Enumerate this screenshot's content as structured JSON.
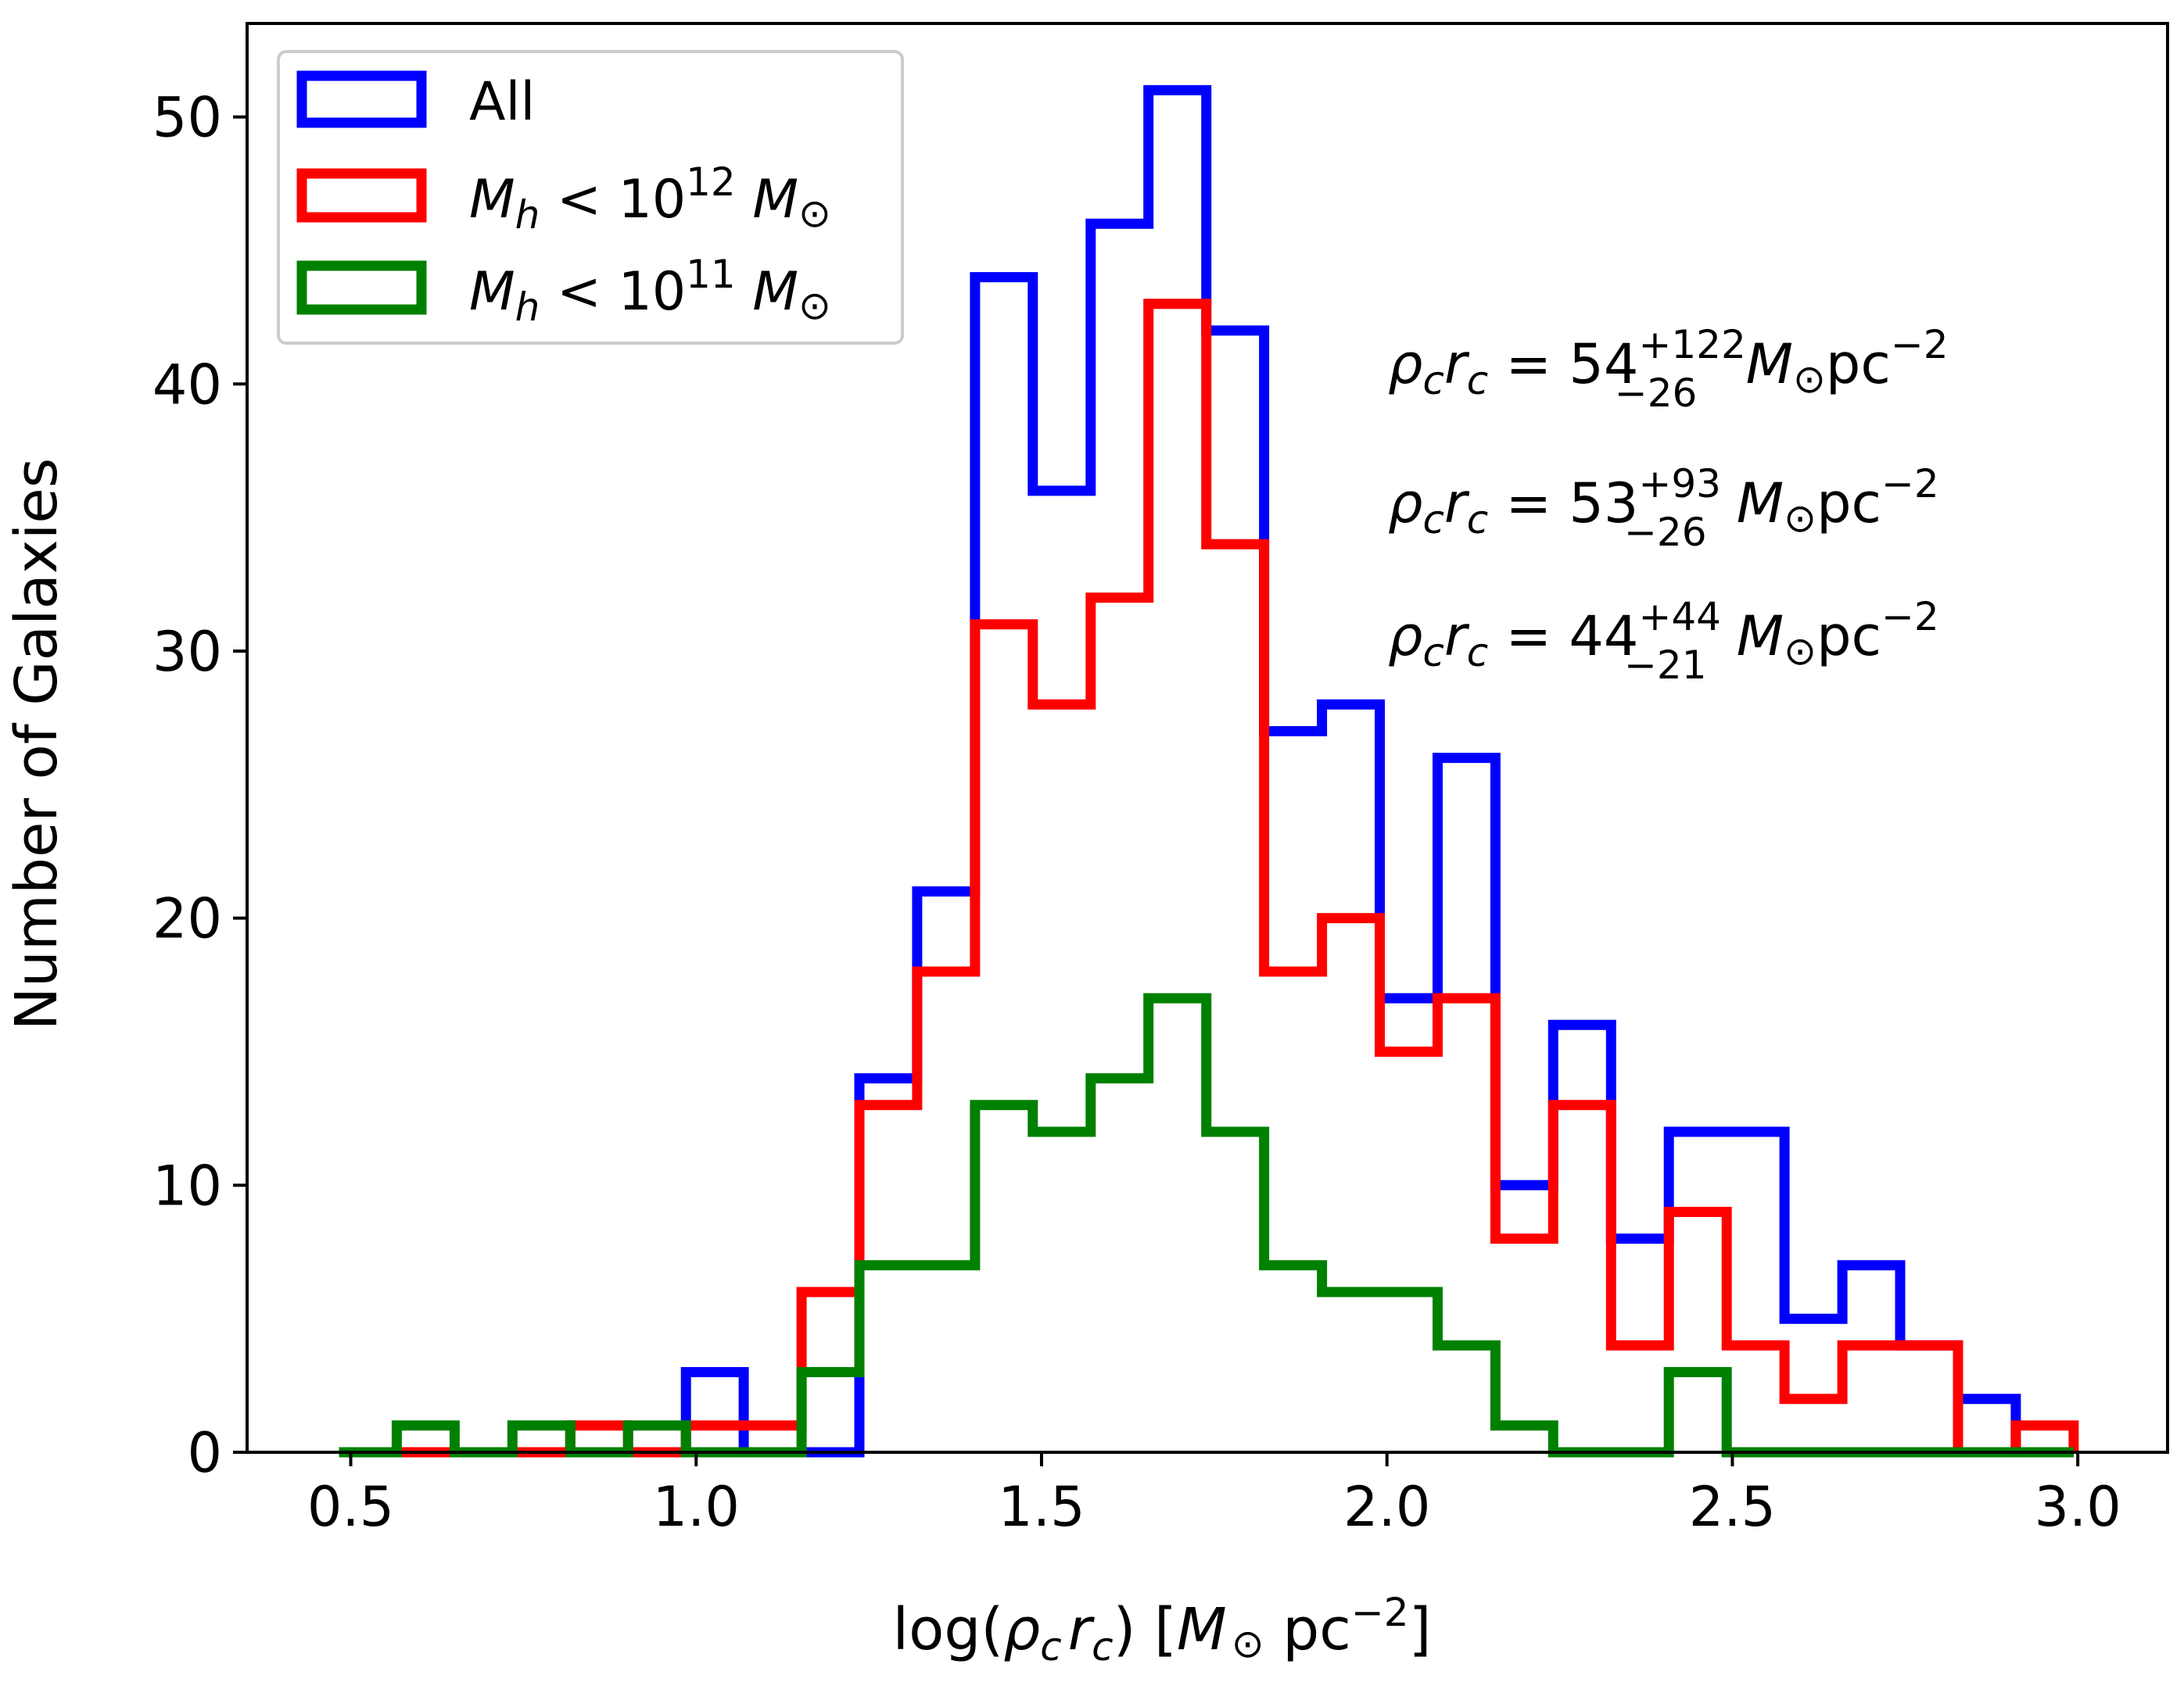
{
  "chart_data": {
    "type": "histogram",
    "title": "",
    "xlabel": {
      "pre": "log(",
      "rho": "ρ",
      "rho_sub": "c",
      "r": "r",
      "r_sub": "c",
      "post": ") [",
      "M": "M",
      "sun": "⊙",
      "unit": " pc",
      "exp": "−2",
      "close": "]"
    },
    "ylabel": "Number of Galaxies",
    "xlim": [
      0.35,
      3.13
    ],
    "ylim": [
      0,
      53.5
    ],
    "xticks": [
      "0.5",
      "1.0",
      "1.5",
      "2.0",
      "2.5",
      "3.0"
    ],
    "xtick_values": [
      0.5,
      1.0,
      1.5,
      2.0,
      2.5,
      3.0
    ],
    "yticks": [
      "0",
      "10",
      "20",
      "30",
      "40",
      "50"
    ],
    "ytick_values": [
      0,
      10,
      20,
      30,
      40,
      50
    ],
    "bin_start": 0.483,
    "bin_width": 0.0837,
    "series": [
      {
        "name": "All",
        "color": "#0000ff",
        "values": [
          0,
          0,
          0,
          0,
          0,
          0,
          3,
          0,
          0,
          14,
          21,
          44,
          36,
          46,
          51,
          42,
          27,
          28,
          17,
          26,
          10,
          16,
          8,
          12,
          12,
          5,
          7,
          4,
          2,
          0
        ]
      },
      {
        "name": "Mh < 10^12 Msun",
        "color": "#ff0000",
        "values": [
          0,
          0,
          0,
          0,
          1,
          0,
          1,
          1,
          6,
          13,
          18,
          31,
          28,
          32,
          43,
          34,
          18,
          20,
          15,
          17,
          8,
          13,
          4,
          9,
          4,
          2,
          4,
          4,
          0,
          1
        ]
      },
      {
        "name": "Mh < 10^11 Msun",
        "color": "#008000",
        "values": [
          0,
          1,
          0,
          1,
          0,
          1,
          0,
          0,
          3,
          7,
          7,
          13,
          12,
          14,
          17,
          12,
          7,
          6,
          6,
          4,
          1,
          0,
          0,
          3,
          0,
          0,
          0,
          0,
          0,
          0
        ]
      }
    ],
    "legend": {
      "position": "top-left",
      "entries": [
        {
          "label": "All"
        },
        {
          "m": "M",
          "sub": "h",
          "lt": " < 10",
          "exp": "12",
          "msun": " M",
          "sun": "⊙"
        },
        {
          "m": "M",
          "sub": "h",
          "lt": " < 10",
          "exp": "11",
          "msun": " M",
          "sun": "⊙"
        }
      ]
    },
    "annotations": [
      {
        "color": "#0000ff",
        "rho": "ρ",
        "c1": "c",
        "r": "r",
        "c2": "c",
        "eq": " = 54",
        "sup": "+122",
        "subv": "−26",
        "m": " M",
        "sun": "⊙",
        "unit": "pc",
        "exp": "−2"
      },
      {
        "color": "#ff0000",
        "rho": "ρ",
        "c1": "c",
        "r": "r",
        "c2": "c",
        "eq": " = 53",
        "sup": "+93",
        "subv": "−26",
        "m": " M",
        "sun": "⊙",
        "unit": "pc",
        "exp": "−2"
      },
      {
        "color": "#008000",
        "rho": "ρ",
        "c1": "c",
        "r": "r",
        "c2": "c",
        "eq": " = 44",
        "sup": "+44",
        "subv": "−21",
        "m": " M",
        "sun": "⊙",
        "unit": "pc",
        "exp": "−2"
      }
    ]
  }
}
